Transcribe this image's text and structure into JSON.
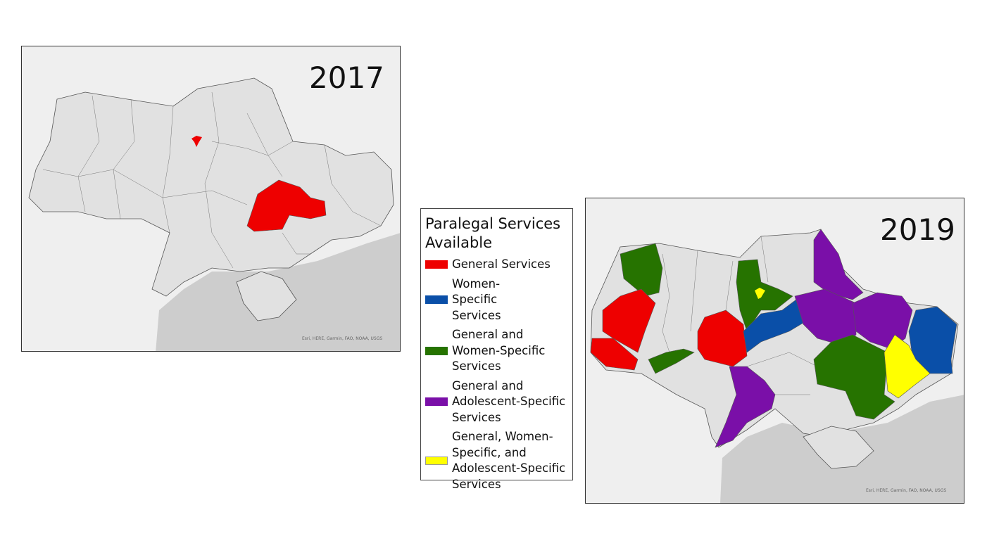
{
  "maps": [
    {
      "year": "2017",
      "attribution": "Esri, HERE, Garmin, FAO, NOAA, USGS"
    },
    {
      "year": "2019",
      "attribution": "Esri, HERE, Garmin, FAO, NOAA, USGS"
    }
  ],
  "legend": {
    "title": "Paralegal Services Available",
    "items": [
      {
        "label": "General Services",
        "color": "#ee0000"
      },
      {
        "label": "Women-Specific Services",
        "color": "#0a4fa8"
      },
      {
        "label": "General and Women-Specific Services",
        "color": "#267300"
      },
      {
        "label": "General and Adolescent-Specific Services",
        "color": "#7a0fa8"
      },
      {
        "label": "General, Women-Specific, and Adolescent-Specific Services",
        "color": "#ffff00"
      }
    ]
  },
  "colors": {
    "land": "#e1e1e1",
    "background": "#efefef",
    "sea": "#cdcdcd",
    "border": "#555555"
  }
}
